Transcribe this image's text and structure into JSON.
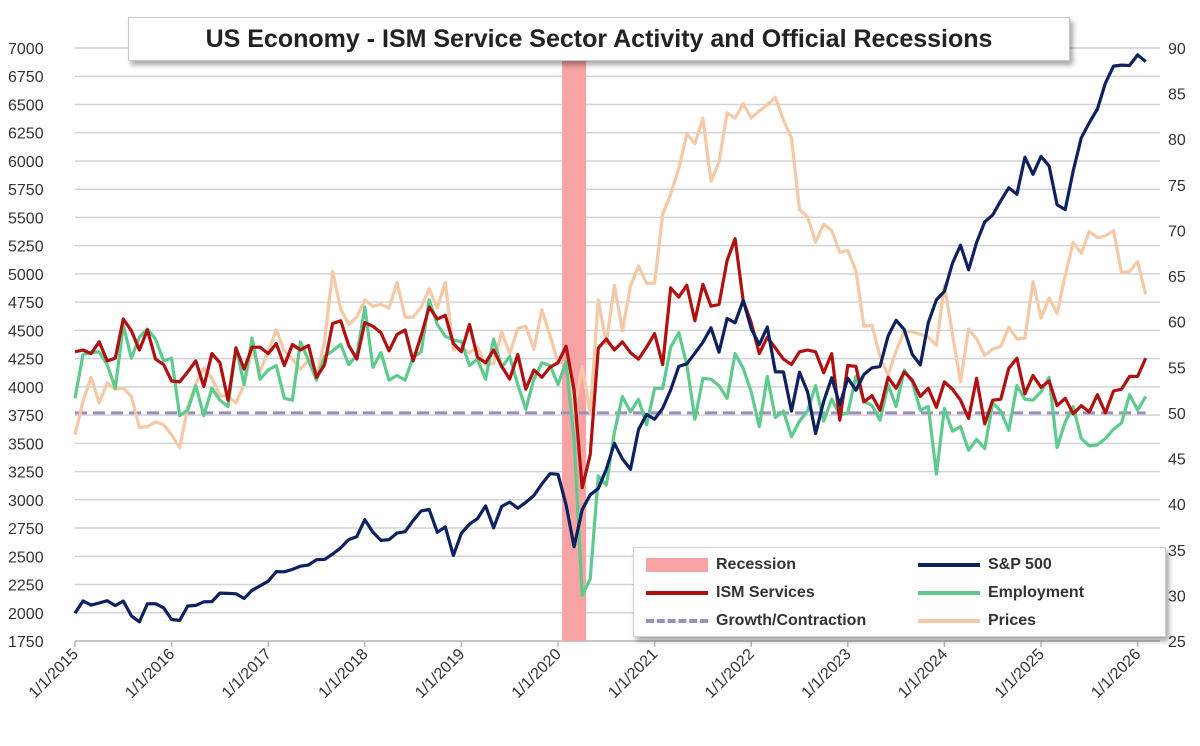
{
  "chart_data": {
    "type": "line",
    "title": "US Economy - ISM Service Sector Activity and Official Recessions",
    "x_start": "2015-01",
    "x_frequency": "monthly",
    "x_tick_labels": [
      "1/1/2015",
      "1/1/2016",
      "1/1/2017",
      "1/1/2018",
      "1/1/2019",
      "1/1/2020",
      "1/1/2021",
      "1/1/2022",
      "1/1/2023",
      "1/1/2024",
      "1/1/2025",
      "1/1/2026"
    ],
    "y_left": {
      "range": [
        1750,
        7000
      ],
      "ticks": [
        1750,
        2000,
        2250,
        2500,
        2750,
        3000,
        3250,
        3500,
        3750,
        4000,
        4250,
        4500,
        4750,
        5000,
        5250,
        5500,
        5750,
        6000,
        6250,
        6500,
        6750,
        7000
      ]
    },
    "y_right": {
      "range": [
        25,
        90
      ],
      "ticks": [
        25,
        30,
        35,
        40,
        45,
        50,
        55,
        60,
        65,
        70,
        75,
        80,
        85,
        90
      ]
    },
    "grid": "horizontal",
    "legend_position": "bottom-right",
    "recession": {
      "name": "Recession",
      "start": "2020-02",
      "end": "2020-04",
      "color": "#f7a3a3"
    },
    "series": [
      {
        "name": "S&P 500",
        "axis": "left",
        "color": "#0d2060",
        "values": [
          1995,
          2105,
          2068,
          2086,
          2107,
          2063,
          2104,
          1972,
          1920,
          2079,
          2080,
          2044,
          1940,
          1932,
          2060,
          2065,
          2097,
          2099,
          2174,
          2171,
          2168,
          2126,
          2199,
          2239,
          2279,
          2364,
          2363,
          2384,
          2412,
          2423,
          2470,
          2472,
          2519,
          2575,
          2648,
          2674,
          2824,
          2714,
          2641,
          2648,
          2705,
          2718,
          2816,
          2902,
          2914,
          2712,
          2760,
          2507,
          2704,
          2784,
          2834,
          2946,
          2752,
          2942,
          2980,
          2926,
          2977,
          3038,
          3141,
          3231,
          3226,
          2954,
          2585,
          2912,
          3044,
          3100,
          3271,
          3500,
          3363,
          3270,
          3622,
          3756,
          3714,
          3811,
          3973,
          4181,
          4204,
          4298,
          4395,
          4523,
          4308,
          4605,
          4567,
          4766,
          4516,
          4374,
          4530,
          4132,
          4132,
          3785,
          4130,
          3955,
          3586,
          3872,
          4080,
          3840,
          4077,
          3970,
          4109,
          4169,
          4180,
          4450,
          4589,
          4508,
          4288,
          4194,
          4568,
          4770,
          4846,
          5096,
          5254,
          5036,
          5278,
          5460,
          5522,
          5648,
          5762,
          5705,
          6032,
          5882,
          6041,
          5955,
          5612,
          5569,
          5912,
          6205,
          6339,
          6460,
          6688,
          6840,
          6849,
          6845,
          6940,
          6880
        ]
      },
      {
        "name": "ISM Services",
        "axis": "right",
        "color": "#b01010",
        "values": [
          56.7,
          56.9,
          56.5,
          57.8,
          55.7,
          56.0,
          60.3,
          59.0,
          56.9,
          59.1,
          55.9,
          55.3,
          53.5,
          53.4,
          54.5,
          55.7,
          52.9,
          56.5,
          55.5,
          51.4,
          57.1,
          54.8,
          57.2,
          57.2,
          56.5,
          57.6,
          55.2,
          57.5,
          56.9,
          57.4,
          53.9,
          55.3,
          59.8,
          60.1,
          57.4,
          55.9,
          59.9,
          59.5,
          58.8,
          56.8,
          58.6,
          59.1,
          55.7,
          58.5,
          61.6,
          60.3,
          60.7,
          57.6,
          56.7,
          59.7,
          56.1,
          55.5,
          56.9,
          55.1,
          53.7,
          56.4,
          52.6,
          54.7,
          53.9,
          55.0,
          55.5,
          57.3,
          52.5,
          41.8,
          45.4,
          57.1,
          58.1,
          56.9,
          57.8,
          56.6,
          55.9,
          57.2,
          58.7,
          55.3,
          63.7,
          62.7,
          64.0,
          60.1,
          64.1,
          61.7,
          61.9,
          66.7,
          69.1,
          62.3,
          59.9,
          56.5,
          58.3,
          57.1,
          55.9,
          55.3,
          56.7,
          56.9,
          56.7,
          54.4,
          56.5,
          49.2,
          55.2,
          55.1,
          51.2,
          51.9,
          50.3,
          53.9,
          52.7,
          54.5,
          53.6,
          51.8,
          52.7,
          50.6,
          53.4,
          52.6,
          51.4,
          49.4,
          53.8,
          48.8,
          51.4,
          51.5,
          54.9,
          56.0,
          52.1,
          54.1,
          52.8,
          53.5,
          50.8,
          51.6,
          49.9,
          50.8,
          50.1,
          52.0,
          50.0,
          52.4,
          52.6,
          54.0,
          54.0,
          56.0
        ]
      },
      {
        "name": "Employment",
        "axis": "right",
        "color": "#5ecb8e",
        "values": [
          51.6,
          56.4,
          56.6,
          56.7,
          55.3,
          52.7,
          59.6,
          56.0,
          58.3,
          59.2,
          58.1,
          55.7,
          56.0,
          49.7,
          50.3,
          53.0,
          49.7,
          52.7,
          51.4,
          50.7,
          57.2,
          53.1,
          58.2,
          53.7,
          54.7,
          55.2,
          51.6,
          51.4,
          57.8,
          55.8,
          53.6,
          56.2,
          56.8,
          57.5,
          55.3,
          56.3,
          61.6,
          55.0,
          56.6,
          53.6,
          54.1,
          53.6,
          56.1,
          56.7,
          62.4,
          59.7,
          58.4,
          58.0,
          57.8,
          55.2,
          55.9,
          53.7,
          58.1,
          55.0,
          56.2,
          53.1,
          50.4,
          53.7,
          55.5,
          55.2,
          53.1,
          55.6,
          47.0,
          30.0,
          31.8,
          43.1,
          42.1,
          47.9,
          51.8,
          50.1,
          51.5,
          48.7,
          52.7,
          52.7,
          57.2,
          58.8,
          55.3,
          49.3,
          53.8,
          53.7,
          53.0,
          51.6,
          56.5,
          54.9,
          52.3,
          48.5,
          54.0,
          49.5,
          50.2,
          47.4,
          49.1,
          50.2,
          53.0,
          49.1,
          51.5,
          49.8,
          50.0,
          54.0,
          51.3,
          50.8,
          49.2,
          53.1,
          50.7,
          54.7,
          53.4,
          50.3,
          50.7,
          43.3,
          50.5,
          48.0,
          48.5,
          45.9,
          47.1,
          46.1,
          51.1,
          50.2,
          48.1,
          53.0,
          51.5,
          51.4,
          52.3,
          53.9,
          46.2,
          49.0,
          50.7,
          47.2,
          46.4,
          46.5,
          47.2,
          48.2,
          48.9,
          52.0,
          50.3,
          51.8
        ]
      },
      {
        "name": "Prices",
        "axis": "right",
        "color": "#f5c9a6",
        "values": [
          47.6,
          51.3,
          53.9,
          51.1,
          53.3,
          52.6,
          52.7,
          51.8,
          48.4,
          48.5,
          49.0,
          48.7,
          47.6,
          46.2,
          50.6,
          53.2,
          54.9,
          53.8,
          51.9,
          51.8,
          51.1,
          53.1,
          57.0,
          54.6,
          56.7,
          59.1,
          56.8,
          55.9,
          54.8,
          55.8,
          53.9,
          57.9,
          65.5,
          61.4,
          59.7,
          60.5,
          62.4,
          61.7,
          61.9,
          61.5,
          64.3,
          60.5,
          60.5,
          61.6,
          63.6,
          61.5,
          64.3,
          56.9,
          57.1,
          56.6,
          57.2,
          55.3,
          55.4,
          58.9,
          56.5,
          59.3,
          59.5,
          57.0,
          61.3,
          58.5,
          55.5,
          55.5,
          50.0,
          55.1,
          50.0,
          62.4,
          57.6,
          64.0,
          59.0,
          63.9,
          66.1,
          64.2,
          64.2,
          71.8,
          74.0,
          76.8,
          80.6,
          79.5,
          82.3,
          75.4,
          77.5,
          82.9,
          82.3,
          83.9,
          82.3,
          83.1,
          83.8,
          84.6,
          82.1,
          80.1,
          72.3,
          71.5,
          68.7,
          70.7,
          70.0,
          67.6,
          67.8,
          65.6,
          59.5,
          59.6,
          56.2,
          54.1,
          56.8,
          58.9,
          58.9,
          58.6,
          58.3,
          57.4,
          64.0,
          58.6,
          53.4,
          59.2,
          58.1,
          56.3,
          57.0,
          57.3,
          59.4,
          58.1,
          58.2,
          64.4,
          60.4,
          62.6,
          60.9,
          65.1,
          68.7,
          67.5,
          69.9,
          69.2,
          69.4,
          70.0,
          65.4,
          65.5,
          66.6,
          63.0
        ]
      },
      {
        "name": "Growth/Contraction",
        "axis": "right",
        "color": "#9b8fc0",
        "constant": 50,
        "style": "dashed"
      }
    ]
  }
}
